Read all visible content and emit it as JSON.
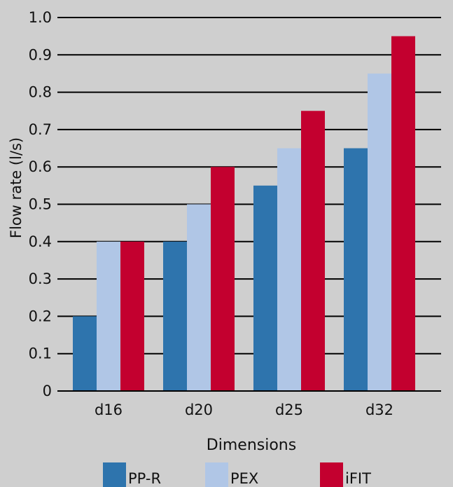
{
  "chart_data": {
    "type": "bar",
    "title": "",
    "xlabel": "Dimensions",
    "ylabel": "Flow rate (l/s)",
    "ylim": [
      0,
      1.0
    ],
    "yticks": [
      0,
      0.1,
      0.2,
      0.3,
      0.4,
      0.5,
      0.6,
      0.7,
      0.8,
      0.9,
      1.0
    ],
    "ytick_labels": [
      "0",
      "0.1",
      "0.2",
      "0.3",
      "0.4",
      "0.5",
      "0.6",
      "0.7",
      "0.8",
      "0.9",
      "1.0"
    ],
    "categories": [
      "d16",
      "d20",
      "d25",
      "d32"
    ],
    "series": [
      {
        "name": "PP-R",
        "color": "#2e74ad",
        "values": [
          0.2,
          0.4,
          0.55,
          0.65
        ]
      },
      {
        "name": "PEX",
        "color": "#b0c6e6",
        "values": [
          0.4,
          0.5,
          0.65,
          0.85
        ]
      },
      {
        "name": "iFIT",
        "color": "#c3002f",
        "values": [
          0.4,
          0.6,
          0.75,
          0.95
        ]
      }
    ],
    "grid": true,
    "legend_position": "bottom",
    "colors": {
      "background": "#cfcfcf",
      "gridline": "#000000",
      "text": "#111111"
    }
  }
}
